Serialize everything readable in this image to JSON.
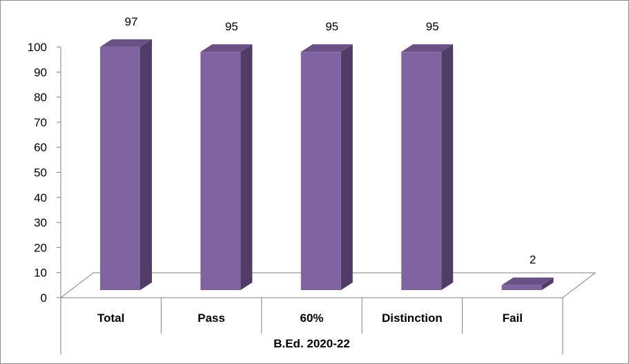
{
  "chart_data": {
    "type": "bar",
    "style": "3d-column",
    "categories": [
      "Total",
      "Pass",
      "60%",
      "Distinction",
      "Fail"
    ],
    "values": [
      97,
      95,
      95,
      95,
      2
    ],
    "group_label": "B.Ed. 2020-22",
    "ylim": [
      0,
      100
    ],
    "yticks": [
      0,
      10,
      20,
      30,
      40,
      50,
      60,
      70,
      80,
      90,
      100
    ],
    "grid": false,
    "legend": "none",
    "colors": {
      "bar_front": "#8064a2",
      "bar_side": "#4f3d66",
      "bar_top": "#6a5287",
      "axis": "#7f7f7f"
    }
  }
}
